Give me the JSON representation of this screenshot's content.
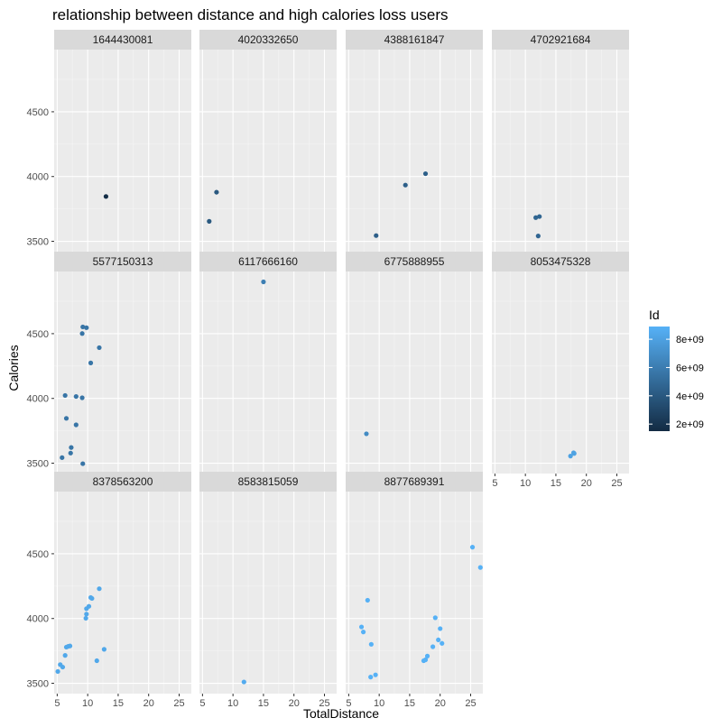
{
  "chart_data": {
    "type": "scatter",
    "title": "relationship between distance and high calories loss users",
    "xlabel": "TotalDistance",
    "ylabel": "Calories",
    "xlim": [
      4.5,
      27
    ],
    "ylim": [
      3420,
      4980
    ],
    "x_ticks": [
      5,
      10,
      15,
      20,
      25
    ],
    "y_ticks": [
      3500,
      4000,
      4500
    ],
    "grid": true,
    "layout": "facet_wrap 4 columns",
    "legend": {
      "title": "Id",
      "placement": "right",
      "labels": [
        "8e+09",
        "6e+09",
        "4e+09",
        "2e+09"
      ],
      "low_color": "#132B43",
      "high_color": "#56B1F7",
      "min_id": 1500000000,
      "max_id": 8900000000,
      "tick_values": [
        8000000000,
        6000000000,
        4000000000,
        2000000000
      ]
    },
    "panels": [
      {
        "id_label": "1644430081",
        "id_value": 1644430081,
        "points": [
          [
            13.0,
            3846
          ]
        ]
      },
      {
        "id_label": "4020332650",
        "id_value": 4020332650,
        "points": [
          [
            6.1,
            3654
          ],
          [
            7.3,
            3879
          ]
        ]
      },
      {
        "id_label": "4388161847",
        "id_value": 4388161847,
        "points": [
          [
            9.5,
            3544
          ],
          [
            14.3,
            3934
          ],
          [
            17.6,
            4022
          ]
        ]
      },
      {
        "id_label": "4702921684",
        "id_value": 4702921684,
        "points": [
          [
            11.7,
            3683
          ],
          [
            12.3,
            3691
          ],
          [
            12.1,
            3541
          ]
        ]
      },
      {
        "id_label": "5577150313",
        "id_value": 5577150313,
        "points": [
          [
            9.2,
            4552
          ],
          [
            9.8,
            4546
          ],
          [
            9.1,
            4501
          ],
          [
            11.9,
            4392
          ],
          [
            10.5,
            4274
          ],
          [
            6.3,
            4023
          ],
          [
            8.1,
            4015
          ],
          [
            9.1,
            4005
          ],
          [
            6.5,
            3846
          ],
          [
            8.1,
            3796
          ],
          [
            7.3,
            3621
          ],
          [
            7.2,
            3578
          ],
          [
            5.8,
            3543
          ],
          [
            9.2,
            3496
          ]
        ]
      },
      {
        "id_label": "6117666160",
        "id_value": 6117666160,
        "points": [
          [
            15.0,
            4900
          ]
        ]
      },
      {
        "id_label": "6775888955",
        "id_value": 6775888955,
        "points": [
          [
            7.9,
            3727
          ]
        ]
      },
      {
        "id_label": "8053475328",
        "id_value": 8053475328,
        "points": [
          [
            17.4,
            3555
          ],
          [
            17.9,
            3580
          ],
          [
            18.0,
            3575
          ]
        ]
      },
      {
        "id_label": "8378563200",
        "id_value": 8378563200,
        "points": [
          [
            5.1,
            3591
          ],
          [
            5.5,
            3644
          ],
          [
            5.9,
            3625
          ],
          [
            6.3,
            3715
          ],
          [
            6.5,
            3779
          ],
          [
            6.8,
            3785
          ],
          [
            7.1,
            3788
          ],
          [
            9.8,
            4034
          ],
          [
            9.7,
            4002
          ],
          [
            9.8,
            4076
          ],
          [
            10.2,
            4094
          ],
          [
            10.5,
            4162
          ],
          [
            10.7,
            4155
          ],
          [
            11.9,
            4230
          ],
          [
            11.5,
            3674
          ],
          [
            12.7,
            3762
          ]
        ]
      },
      {
        "id_label": "8583815059",
        "id_value": 8583815059,
        "points": [
          [
            11.8,
            3510
          ]
        ]
      },
      {
        "id_label": "8877689391",
        "id_value": 8877689391,
        "points": [
          [
            7.1,
            3935
          ],
          [
            7.4,
            3896
          ],
          [
            8.1,
            4141
          ],
          [
            8.7,
            3801
          ],
          [
            8.6,
            3548
          ],
          [
            9.4,
            3565
          ],
          [
            17.3,
            3674
          ],
          [
            17.6,
            3681
          ],
          [
            17.9,
            3710
          ],
          [
            18.8,
            3782
          ],
          [
            19.2,
            4006
          ],
          [
            19.7,
            3835
          ],
          [
            20.0,
            3922
          ],
          [
            20.3,
            3808
          ],
          [
            25.3,
            4551
          ],
          [
            26.6,
            4394
          ]
        ]
      }
    ]
  }
}
